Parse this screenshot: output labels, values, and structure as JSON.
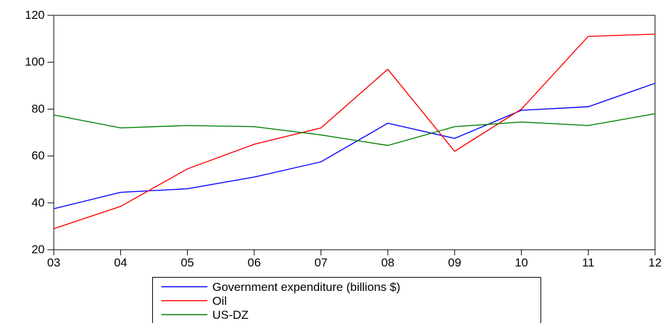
{
  "chart_data": {
    "type": "line",
    "categories": [
      "03",
      "04",
      "05",
      "06",
      "07",
      "08",
      "09",
      "10",
      "11",
      "12"
    ],
    "ylim": [
      20,
      120
    ],
    "yticks": [
      20,
      40,
      60,
      80,
      100,
      120
    ],
    "grid": false,
    "legend_position": "bottom-center",
    "series": [
      {
        "name": "Government expenditure (billions $)",
        "color": "#0000ff",
        "values": [
          37.5,
          44.5,
          46.0,
          51.0,
          57.5,
          74.0,
          67.5,
          79.5,
          81.0,
          91.0
        ]
      },
      {
        "name": "Oil",
        "color": "#ff0000",
        "values": [
          29.0,
          38.5,
          54.5,
          65.0,
          72.0,
          97.0,
          62.0,
          80.0,
          111.0,
          112.0
        ]
      },
      {
        "name": "US-DZ",
        "color": "#008000",
        "values": [
          77.5,
          72.0,
          73.0,
          72.5,
          69.0,
          64.5,
          72.5,
          74.5,
          73.0,
          78.0
        ]
      }
    ]
  }
}
